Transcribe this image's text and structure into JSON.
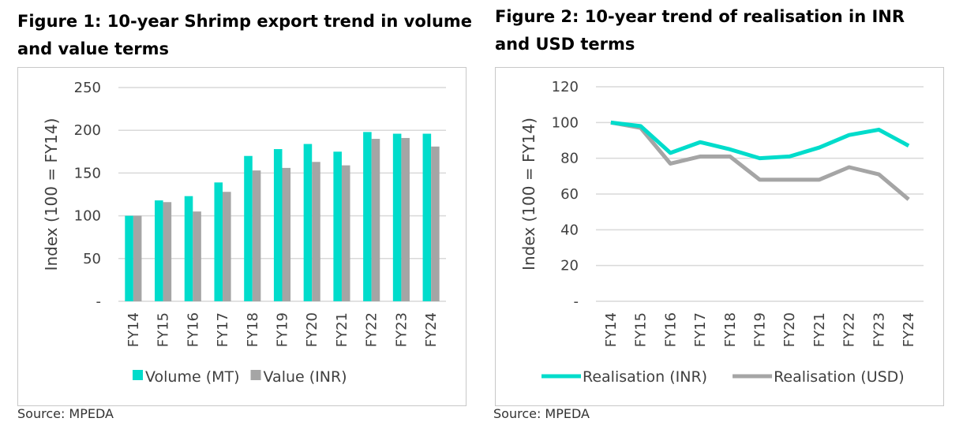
{
  "figure1": {
    "title": "Figure 1: 10-year Shrimp export trend in volume and value terms",
    "source": "Source: MPEDA"
  },
  "figure2": {
    "title": "Figure 2: 10-year trend of realisation in INR and USD terms",
    "source": "Source: MPEDA"
  },
  "chart_data": [
    {
      "type": "bar",
      "title": "Figure 1: 10-year Shrimp export trend in volume and value terms",
      "ylabel": "Index (100 = FY14)",
      "xlabel": "",
      "ylim": [
        0,
        250
      ],
      "yticks": [
        "-",
        "50",
        "100",
        "150",
        "200",
        "250"
      ],
      "grid": true,
      "legend": "bottom",
      "categories": [
        "FY14",
        "FY15",
        "FY16",
        "FY17",
        "FY18",
        "FY19",
        "FY20",
        "FY21",
        "FY22",
        "FY23",
        "FY24"
      ],
      "series": [
        {
          "name": "Volume (MT)",
          "color": "#00DCCB",
          "values": [
            100,
            118,
            123,
            139,
            170,
            178,
            184,
            175,
            198,
            196,
            196
          ]
        },
        {
          "name": "Value (INR)",
          "color": "#A5A5A5",
          "values": [
            100,
            116,
            105,
            128,
            153,
            156,
            163,
            159,
            190,
            191,
            181
          ]
        }
      ]
    },
    {
      "type": "line",
      "title": "Figure 2: 10-year trend of realisation in INR and USD terms",
      "ylabel": "Index (100 = FY14)",
      "xlabel": "",
      "ylim": [
        0,
        120
      ],
      "yticks": [
        "-",
        "20",
        "40",
        "60",
        "80",
        "100",
        "120"
      ],
      "grid": true,
      "legend": "bottom",
      "categories": [
        "FY14",
        "FY15",
        "FY16",
        "FY17",
        "FY18",
        "FY19",
        "FY20",
        "FY21",
        "FY22",
        "FY23",
        "FY24"
      ],
      "series": [
        {
          "name": "Realisation (INR)",
          "color": "#00DCCB",
          "values": [
            100,
            98,
            83,
            89,
            85,
            80,
            81,
            86,
            93,
            96,
            87
          ]
        },
        {
          "name": "Realisation (USD)",
          "color": "#A5A5A5",
          "values": [
            100,
            97,
            77,
            81,
            81,
            68,
            68,
            68,
            75,
            71,
            57
          ]
        }
      ]
    }
  ]
}
